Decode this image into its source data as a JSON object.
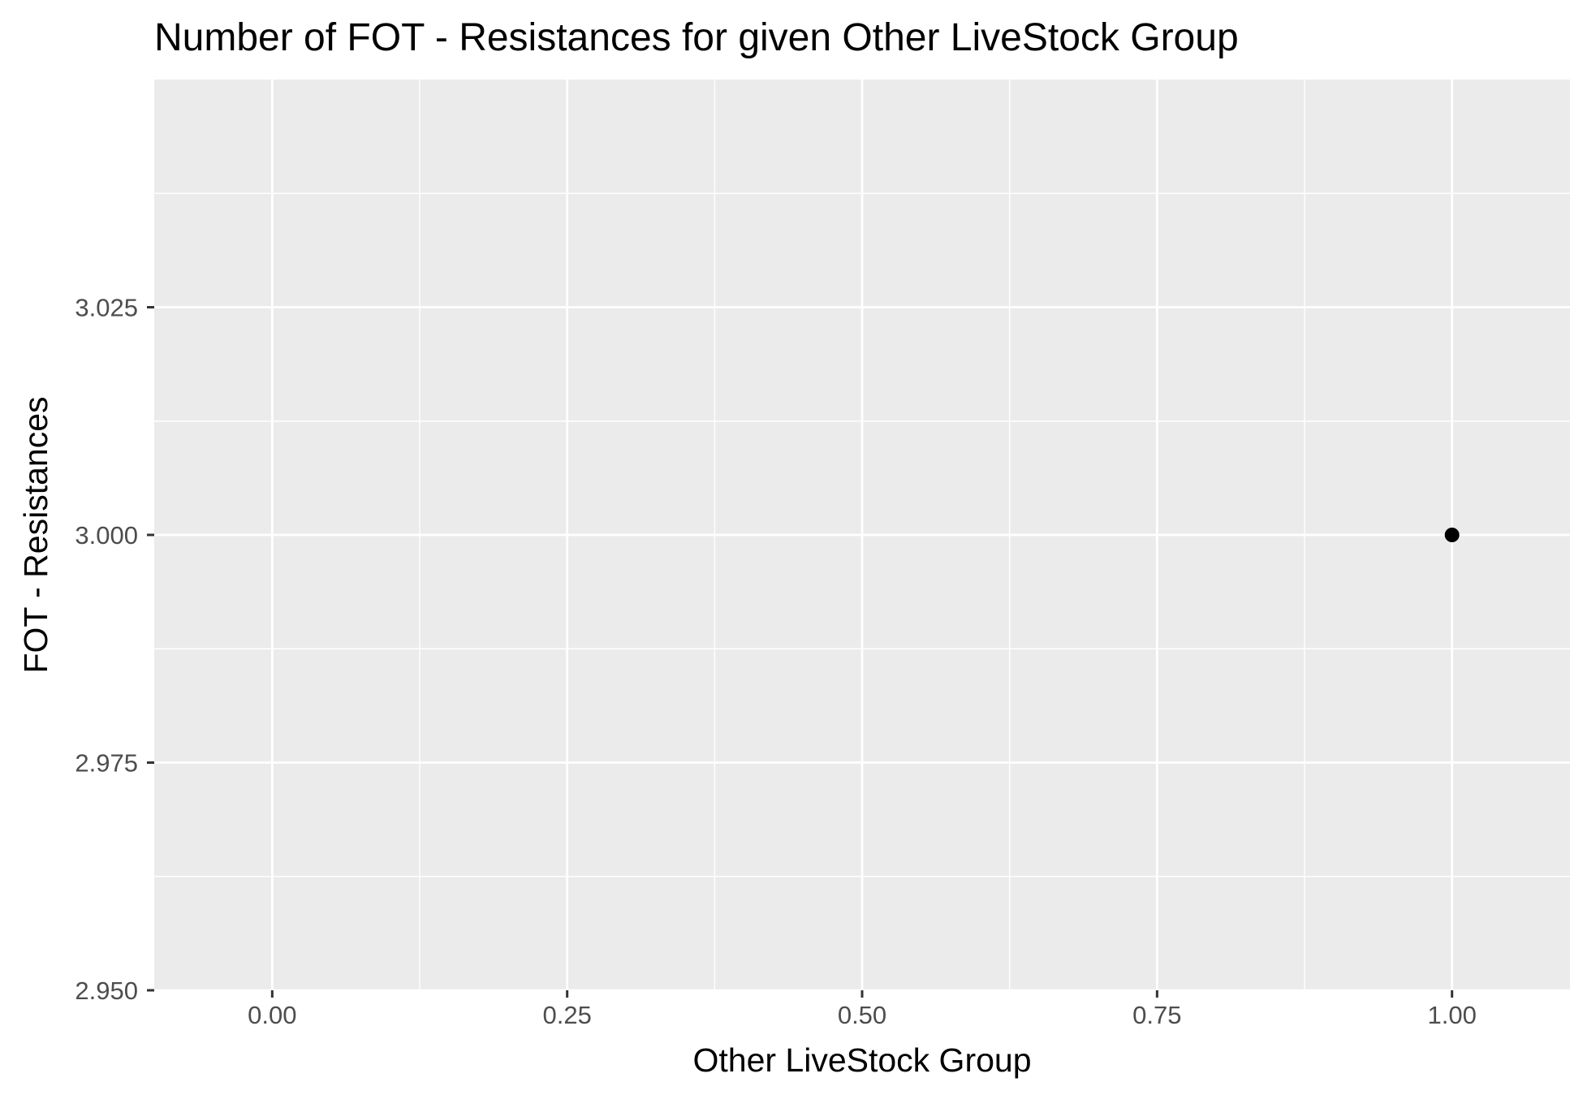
{
  "chart_data": {
    "type": "scatter",
    "title": "Number of FOT - Resistances for given Other LiveStock Group",
    "xlabel": "Other LiveStock Group",
    "ylabel": "FOT - Resistances",
    "xlim": [
      -0.1,
      1.1
    ],
    "ylim": [
      2.95,
      3.05
    ],
    "x_ticks": [
      0,
      0.25,
      0.5,
      0.75,
      1
    ],
    "x_tick_labels": [
      "0.00",
      "0.25",
      "0.50",
      "0.75",
      "1.00"
    ],
    "y_ticks": [
      2.95,
      2.975,
      3,
      3.025
    ],
    "y_tick_labels": [
      "2.950",
      "2.975",
      "3.000",
      "3.025"
    ],
    "grid": true,
    "legend": "none",
    "colors": {
      "panel": "#ebebeb",
      "grid": "#ffffff",
      "point": "#000000"
    },
    "points": [
      {
        "x": 1,
        "y": 3
      }
    ]
  }
}
